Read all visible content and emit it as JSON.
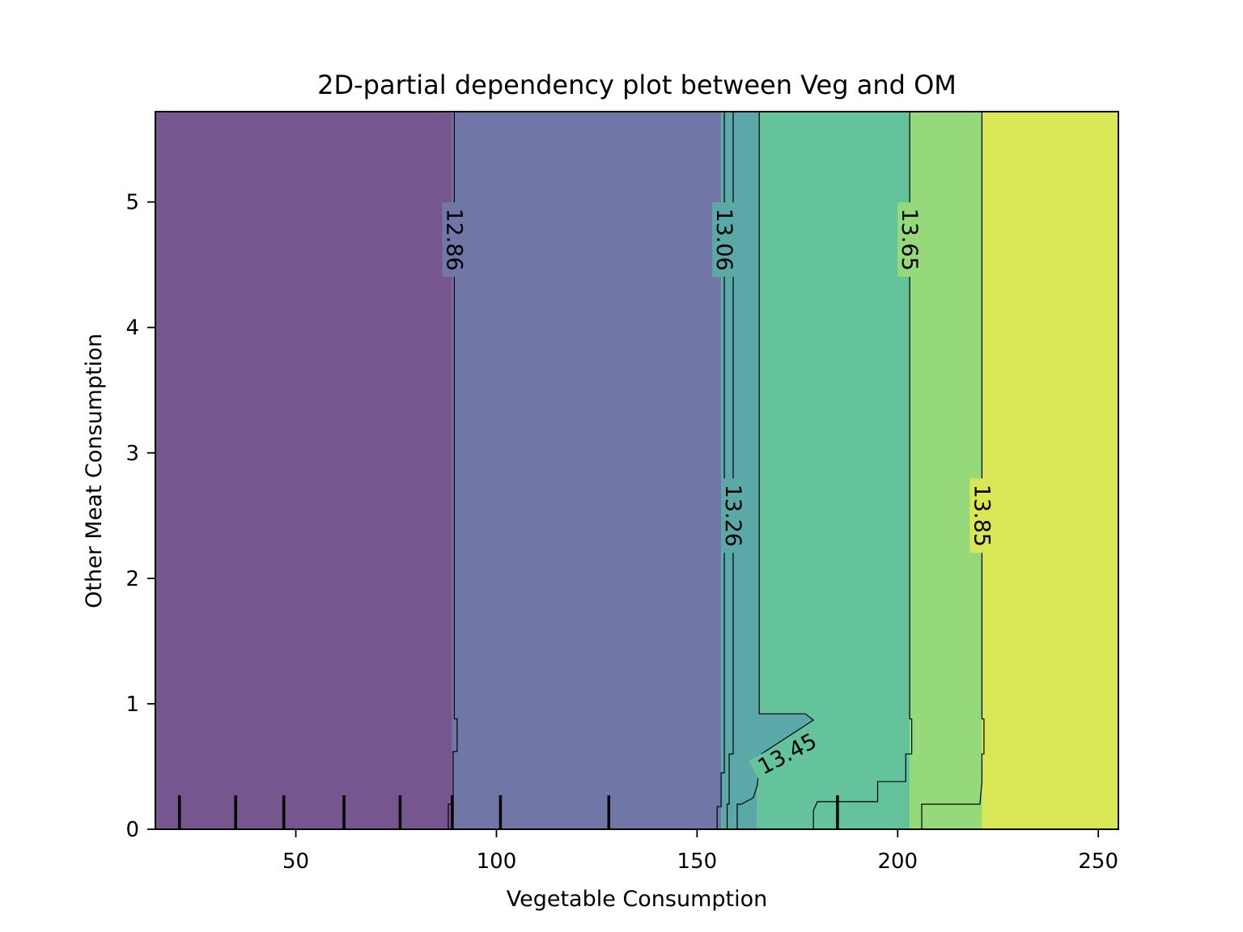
{
  "chart_data": {
    "type": "contour",
    "title": "2D-partial dependency plot between Veg and OM",
    "xlabel": "Vegetable Consumption",
    "ylabel": "Other Meat Consumption",
    "xlim": [
      15,
      255
    ],
    "ylim": [
      0,
      5.72
    ],
    "xticks": [
      50,
      100,
      150,
      200,
      250
    ],
    "yticks": [
      0,
      1,
      2,
      3,
      4,
      5
    ],
    "grid": false,
    "bands": [
      {
        "x_start": 15,
        "x_end": 89,
        "color": "#77568f"
      },
      {
        "x_start": 89,
        "x_end": 156,
        "color": "#7076a6"
      },
      {
        "x_start": 156,
        "x_end": 165,
        "color": "#5ba8a9"
      },
      {
        "x_start": 165,
        "x_end": 203,
        "color": "#64c39b"
      },
      {
        "x_start": 203,
        "x_end": 221,
        "color": "#96d97b"
      },
      {
        "x_start": 221,
        "x_end": 255,
        "color": "#d9e656"
      }
    ],
    "contours": [
      {
        "level": "12.86",
        "line": [
          [
            89.5,
            5.72
          ],
          [
            89.5,
            0.88
          ],
          [
            90.2,
            0.88
          ],
          [
            90.2,
            0.62
          ],
          [
            89.2,
            0.62
          ],
          [
            89.2,
            0.2
          ],
          [
            88,
            0.2
          ],
          [
            88,
            0
          ]
        ],
        "label_at": [
          89.5,
          4.7
        ],
        "label_angle": 90
      },
      {
        "level": "13.06",
        "line": [
          [
            156.8,
            5.72
          ],
          [
            156.8,
            0.45
          ],
          [
            156,
            0.45
          ],
          [
            156,
            0.18
          ],
          [
            155,
            0.18
          ],
          [
            155,
            0
          ]
        ],
        "label_at": [
          156.8,
          4.7
        ],
        "label_angle": 90
      },
      {
        "level": "13.26",
        "line": [
          [
            159,
            5.72
          ],
          [
            159,
            0.6
          ],
          [
            158,
            0.6
          ],
          [
            158,
            0.2
          ],
          [
            157.5,
            0.2
          ],
          [
            157.5,
            0
          ]
        ],
        "label_at": [
          159,
          2.5
        ],
        "label_angle": 90
      },
      {
        "level": "13.45",
        "line": [
          [
            165.5,
            5.72
          ],
          [
            165.5,
            0.92
          ],
          [
            177,
            0.92
          ],
          [
            179,
            0.87
          ],
          [
            166,
            0.6
          ],
          [
            165,
            0.35
          ],
          [
            164,
            0.25
          ],
          [
            161,
            0.2
          ],
          [
            160,
            0.2
          ],
          [
            160,
            0
          ]
        ],
        "label_at": [
          172.5,
          0.6
        ],
        "label_angle": -28
      },
      {
        "level": "13.65",
        "line": [
          [
            203,
            5.72
          ],
          [
            203,
            0.88
          ],
          [
            203.5,
            0.88
          ],
          [
            203.5,
            0.6
          ],
          [
            202,
            0.6
          ],
          [
            202,
            0.38
          ],
          [
            195,
            0.38
          ],
          [
            195,
            0.22
          ],
          [
            189,
            0.22
          ],
          [
            180,
            0.22
          ],
          [
            179,
            0.15
          ],
          [
            179,
            0
          ]
        ],
        "label_at": [
          203,
          4.7
        ],
        "label_angle": 90
      },
      {
        "level": "13.85",
        "line": [
          [
            221,
            5.72
          ],
          [
            221,
            0.88
          ],
          [
            221.5,
            0.88
          ],
          [
            221.5,
            0.6
          ],
          [
            221,
            0.6
          ],
          [
            221,
            0.38
          ],
          [
            220.5,
            0.2
          ],
          [
            206,
            0.2
          ],
          [
            206,
            0
          ]
        ],
        "label_at": [
          221,
          2.5
        ],
        "label_angle": 90
      }
    ],
    "low_region": {
      "polygon": [
        [
          160,
          0
        ],
        [
          160,
          0.2
        ],
        [
          161,
          0.2
        ],
        [
          164,
          0.25
        ],
        [
          165,
          0.35
        ],
        [
          166,
          0.6
        ],
        [
          179,
          0.87
        ],
        [
          177,
          0.92
        ],
        [
          165.5,
          0.92
        ],
        [
          165.5,
          5.72
        ],
        [
          159,
          5.72
        ],
        [
          159,
          0.6
        ],
        [
          158,
          0.6
        ],
        [
          158,
          0.2
        ],
        [
          157.5,
          0.2
        ],
        [
          157.5,
          0
        ]
      ],
      "color": "#5ba8a9"
    },
    "rug_x": [
      21,
      35,
      47,
      62,
      76,
      89,
      101,
      128,
      185
    ]
  }
}
